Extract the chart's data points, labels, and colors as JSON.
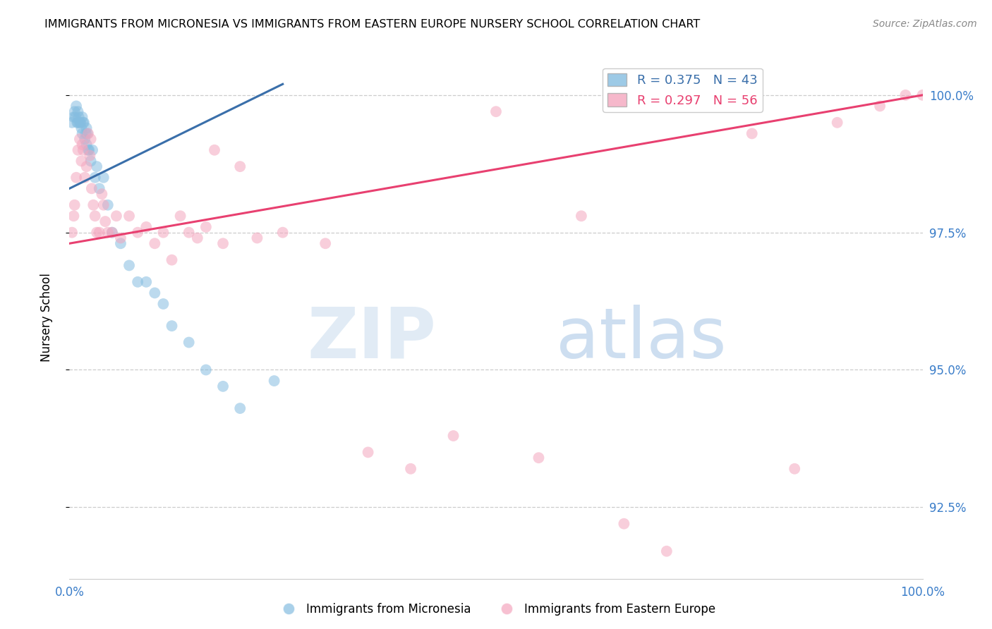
{
  "title": "IMMIGRANTS FROM MICRONESIA VS IMMIGRANTS FROM EASTERN EUROPE NURSERY SCHOOL CORRELATION CHART",
  "source": "Source: ZipAtlas.com",
  "ylabel": "Nursery School",
  "ytick_labels": [
    "100.0%",
    "97.5%",
    "95.0%",
    "92.5%"
  ],
  "ytick_values": [
    100.0,
    97.5,
    95.0,
    92.5
  ],
  "xtick_labels": [
    "0.0%",
    "",
    "",
    "",
    "100.0%"
  ],
  "xtick_values": [
    0,
    25,
    50,
    75,
    100
  ],
  "xmin": 0.0,
  "xmax": 100.0,
  "ymin": 91.2,
  "ymax": 100.7,
  "legend_blue_R": "R = 0.375",
  "legend_blue_N": "N = 43",
  "legend_pink_R": "R = 0.297",
  "legend_pink_N": "N = 56",
  "blue_color": "#85bde0",
  "pink_color": "#f4a6be",
  "blue_line_color": "#3a6faa",
  "pink_line_color": "#e84070",
  "blue_line_x0": 0.0,
  "blue_line_y0": 98.3,
  "blue_line_x1": 25.0,
  "blue_line_y1": 100.2,
  "pink_line_x0": 0.0,
  "pink_line_y0": 97.3,
  "pink_line_x1": 100.0,
  "pink_line_y1": 100.0,
  "blue_x": [
    0.3,
    0.5,
    0.6,
    0.7,
    0.8,
    0.9,
    1.0,
    1.0,
    1.1,
    1.2,
    1.3,
    1.4,
    1.5,
    1.5,
    1.6,
    1.7,
    1.8,
    1.9,
    2.0,
    2.0,
    2.1,
    2.2,
    2.3,
    2.5,
    2.7,
    3.0,
    3.2,
    3.5,
    4.0,
    4.5,
    5.0,
    6.0,
    7.0,
    8.0,
    9.0,
    10.0,
    11.0,
    12.0,
    14.0,
    16.0,
    18.0,
    20.0,
    24.0
  ],
  "blue_y": [
    99.5,
    99.6,
    99.7,
    99.6,
    99.8,
    99.5,
    99.7,
    99.5,
    99.6,
    99.5,
    99.5,
    99.4,
    99.3,
    99.6,
    99.5,
    99.5,
    99.2,
    99.3,
    99.1,
    99.4,
    99.3,
    99.0,
    99.0,
    98.8,
    99.0,
    98.5,
    98.7,
    98.3,
    98.5,
    98.0,
    97.5,
    97.3,
    96.9,
    96.6,
    96.6,
    96.4,
    96.2,
    95.8,
    95.5,
    95.0,
    94.7,
    94.3,
    94.8
  ],
  "pink_x": [
    0.3,
    0.5,
    0.6,
    0.8,
    1.0,
    1.2,
    1.4,
    1.5,
    1.6,
    1.8,
    2.0,
    2.2,
    2.4,
    2.5,
    2.6,
    2.8,
    3.0,
    3.2,
    3.5,
    3.8,
    4.0,
    4.2,
    4.5,
    5.0,
    5.5,
    6.0,
    7.0,
    8.0,
    9.0,
    10.0,
    11.0,
    12.0,
    13.0,
    14.0,
    15.0,
    16.0,
    17.0,
    18.0,
    20.0,
    22.0,
    25.0,
    30.0,
    35.0,
    40.0,
    45.0,
    50.0,
    55.0,
    60.0,
    65.0,
    70.0,
    80.0,
    85.0,
    90.0,
    95.0,
    98.0,
    100.0
  ],
  "pink_y": [
    97.5,
    97.8,
    98.0,
    98.5,
    99.0,
    99.2,
    98.8,
    99.1,
    99.0,
    98.5,
    98.7,
    99.3,
    98.9,
    99.2,
    98.3,
    98.0,
    97.8,
    97.5,
    97.5,
    98.2,
    98.0,
    97.7,
    97.5,
    97.5,
    97.8,
    97.4,
    97.8,
    97.5,
    97.6,
    97.3,
    97.5,
    97.0,
    97.8,
    97.5,
    97.4,
    97.6,
    99.0,
    97.3,
    98.7,
    97.4,
    97.5,
    97.3,
    93.5,
    93.2,
    93.8,
    99.7,
    93.4,
    97.8,
    92.2,
    91.7,
    99.3,
    93.2,
    99.5,
    99.8,
    100.0,
    100.0
  ]
}
